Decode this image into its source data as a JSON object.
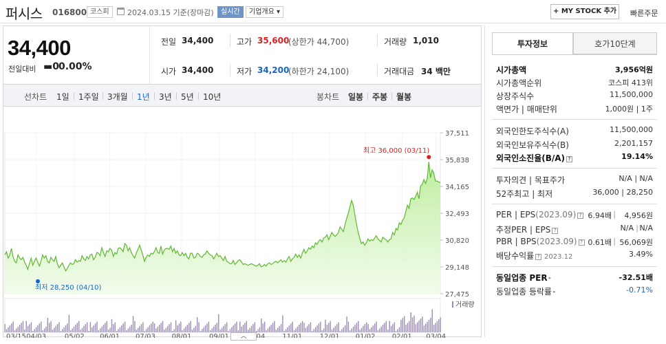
{
  "header": {
    "name": "퍼시스",
    "code": "016800",
    "market": "코스피",
    "date_text": "2024.03.15  기준(장마감)",
    "realtime": "실시간",
    "company_overview": "기업개요 ▾",
    "mystock_button": "+ MY STOCK 추가",
    "quick_order": "빠른주문"
  },
  "price": {
    "current": "34,400",
    "change_label": "전일대비",
    "change_value": "▬0",
    "change_pct": "0.00%"
  },
  "quotes": {
    "prev_close_label": "전일",
    "prev_close": "34,400",
    "high_label": "고가",
    "high": "35,600",
    "upper_limit": "(상한가 44,700)",
    "volume_label": "거래량",
    "volume": "1,010",
    "open_label": "시가",
    "open": "34,400",
    "low_label": "저가",
    "low": "34,200",
    "lower_limit": "(하한가 24,100)",
    "amount_label": "거래대금",
    "amount": "34 백만"
  },
  "periods": {
    "line_label": "선차트",
    "line_items": [
      "1일",
      "1주일",
      "3개월",
      "1년",
      "3년",
      "5년",
      "10년"
    ],
    "active": "1년",
    "candle_label": "봉차트",
    "candle_items": [
      "일봉",
      "주봉",
      "월봉"
    ]
  },
  "chart_data": {
    "type": "area",
    "ylim": [
      27475,
      37511
    ],
    "y_ticks": [
      "37,511",
      "35,838",
      "34,165",
      "32,493",
      "30,820",
      "29,148",
      "27,475"
    ],
    "x_ticks": [
      "03/15",
      "04/03",
      "05/02",
      "06/01",
      "07/03",
      "08/01",
      "09/01",
      "10/04",
      "11/01",
      "12/01",
      "01/02",
      "02/01",
      "03/04"
    ],
    "series": [
      {
        "values": [
          29900,
          30100,
          29700,
          29900,
          30300,
          29800,
          29500,
          29400,
          29900,
          29700,
          29600,
          29750,
          29450,
          29250,
          29000,
          29350,
          29700,
          29250,
          29500,
          29700,
          29450,
          29200,
          29500,
          29900,
          29700,
          29850,
          29500,
          29400,
          29750,
          29600,
          29500,
          29800,
          29350,
          29100,
          29250,
          29400,
          29150,
          28900,
          29050,
          29250,
          29400,
          29300,
          29350,
          29600,
          29450,
          29550,
          29500,
          29850,
          29650,
          29550,
          29800,
          29650,
          29900,
          29950,
          29600,
          29750,
          30050,
          30000,
          29850,
          30350,
          30050,
          29800,
          30150,
          30100,
          30300,
          30200,
          29800,
          30050,
          29950,
          30300,
          30350,
          30250,
          30100,
          30600,
          30500,
          30150,
          30350,
          30050,
          29850,
          29700,
          30000,
          30250,
          30500,
          30200,
          29900,
          29500,
          29750,
          29900,
          29800,
          30000,
          29950,
          30100,
          30350,
          30050,
          30000,
          30450,
          29950,
          30200,
          30300,
          30300,
          30250,
          30450,
          30100,
          30300,
          30000,
          30150,
          29900,
          29850,
          30050,
          29850,
          30000,
          29750,
          29650,
          30000,
          30000,
          29700,
          29750,
          30000,
          29950,
          29800,
          29750,
          29900,
          29950,
          30150,
          30000,
          29900,
          29850,
          29650,
          29800,
          30000,
          29800,
          29850,
          29700,
          29550,
          29800,
          29500,
          29450,
          29350,
          29350,
          29550,
          29300,
          29400,
          29550,
          29600,
          29450,
          29300,
          29350,
          29300,
          29250,
          29300,
          29350,
          29300,
          29250,
          29200,
          29250,
          29350,
          29150,
          29200,
          29300,
          29200,
          29350,
          29400,
          29300,
          29350,
          29450,
          29500,
          29400,
          29500,
          29600,
          29450,
          29550,
          29450,
          29650,
          29800,
          29500,
          29650,
          29750,
          29950,
          29750,
          29900,
          29700,
          30000,
          30250,
          30000,
          30150,
          30350,
          30250,
          30450,
          30350,
          30650,
          30550,
          30750,
          30850,
          30700,
          30950,
          31000,
          31150,
          30850,
          31050,
          31300,
          31150,
          31050,
          31150,
          31300,
          31650,
          31500,
          31350,
          31800,
          32150,
          32500,
          32900,
          33300,
          33000,
          32400,
          31800,
          31300,
          30900,
          30600,
          30700,
          30500,
          30650,
          30900,
          30750,
          30850,
          30800,
          30950,
          31100,
          30900,
          30800,
          30700,
          31000,
          30900,
          30850,
          30700,
          30850,
          30900,
          31300,
          31150,
          31550,
          31450,
          31900,
          31800,
          32050,
          32200,
          32600,
          33000,
          32800,
          33400,
          33450,
          33350,
          33550,
          33800,
          33400,
          34200,
          34300,
          34600,
          34350,
          34650,
          35700,
          34700,
          35200,
          35000,
          34500,
          34500,
          34450,
          34400
        ]
      }
    ],
    "volume_legend": "거래량",
    "high_annotation": "최고 36,000 (03/11)",
    "low_annotation": "최저 28,250 (04/10)"
  },
  "invest_info": {
    "tab_active": "투자정보",
    "tab_other": "호가10단계",
    "rows": {
      "mcap_label": "시가총액",
      "mcap_value": "3,956억원",
      "mcap_rank_label": "시가총액순위",
      "mcap_rank_value": "코스피 413위",
      "shares_label": "상장주식수",
      "shares_value": "11,500,000",
      "par_label": "액면가 | 매매단위",
      "par_value": "1,000원 | 1주",
      "foreign_limit_label": "외국인한도주식수(A)",
      "foreign_limit_value": "11,500,000",
      "foreign_hold_label": "외국인보유주식수(B)",
      "foreign_hold_value": "2,201,157",
      "foreign_ratio_label": "외국인소진율(B/A)",
      "foreign_ratio_value": "19.14%",
      "opinion_label": "투자의견 | 목표주가",
      "opinion_value": "N/A  |  N/A",
      "w52_label": "52주최고 | 최저",
      "w52_value": "36,000  |  28,250",
      "per_label": "PER | EPS",
      "per_year": "(2023.09)",
      "per_value": "6.94배",
      "eps_value": "4,956원",
      "est_per_label": "추정PER | EPS",
      "est_per_value": "N/A",
      "est_eps_value": "N/A",
      "pbr_label": "PBR | BPS",
      "pbr_year": "(2023.09)",
      "pbr_value": "0.61배",
      "bps_value": "56,069원",
      "div_label": "배당수익률",
      "div_year": "2023.12",
      "div_value": "3.49%",
      "sector_per_label": "동일업종 PER",
      "sector_per_value": "-32.51배",
      "sector_chg_label": "동일업종 등락률",
      "sector_chg_value": "-0.71%"
    }
  },
  "colors": {
    "up": "#e02020",
    "down": "#1764c9",
    "line": "#5cb82e",
    "volume": "#9b8cb4"
  }
}
